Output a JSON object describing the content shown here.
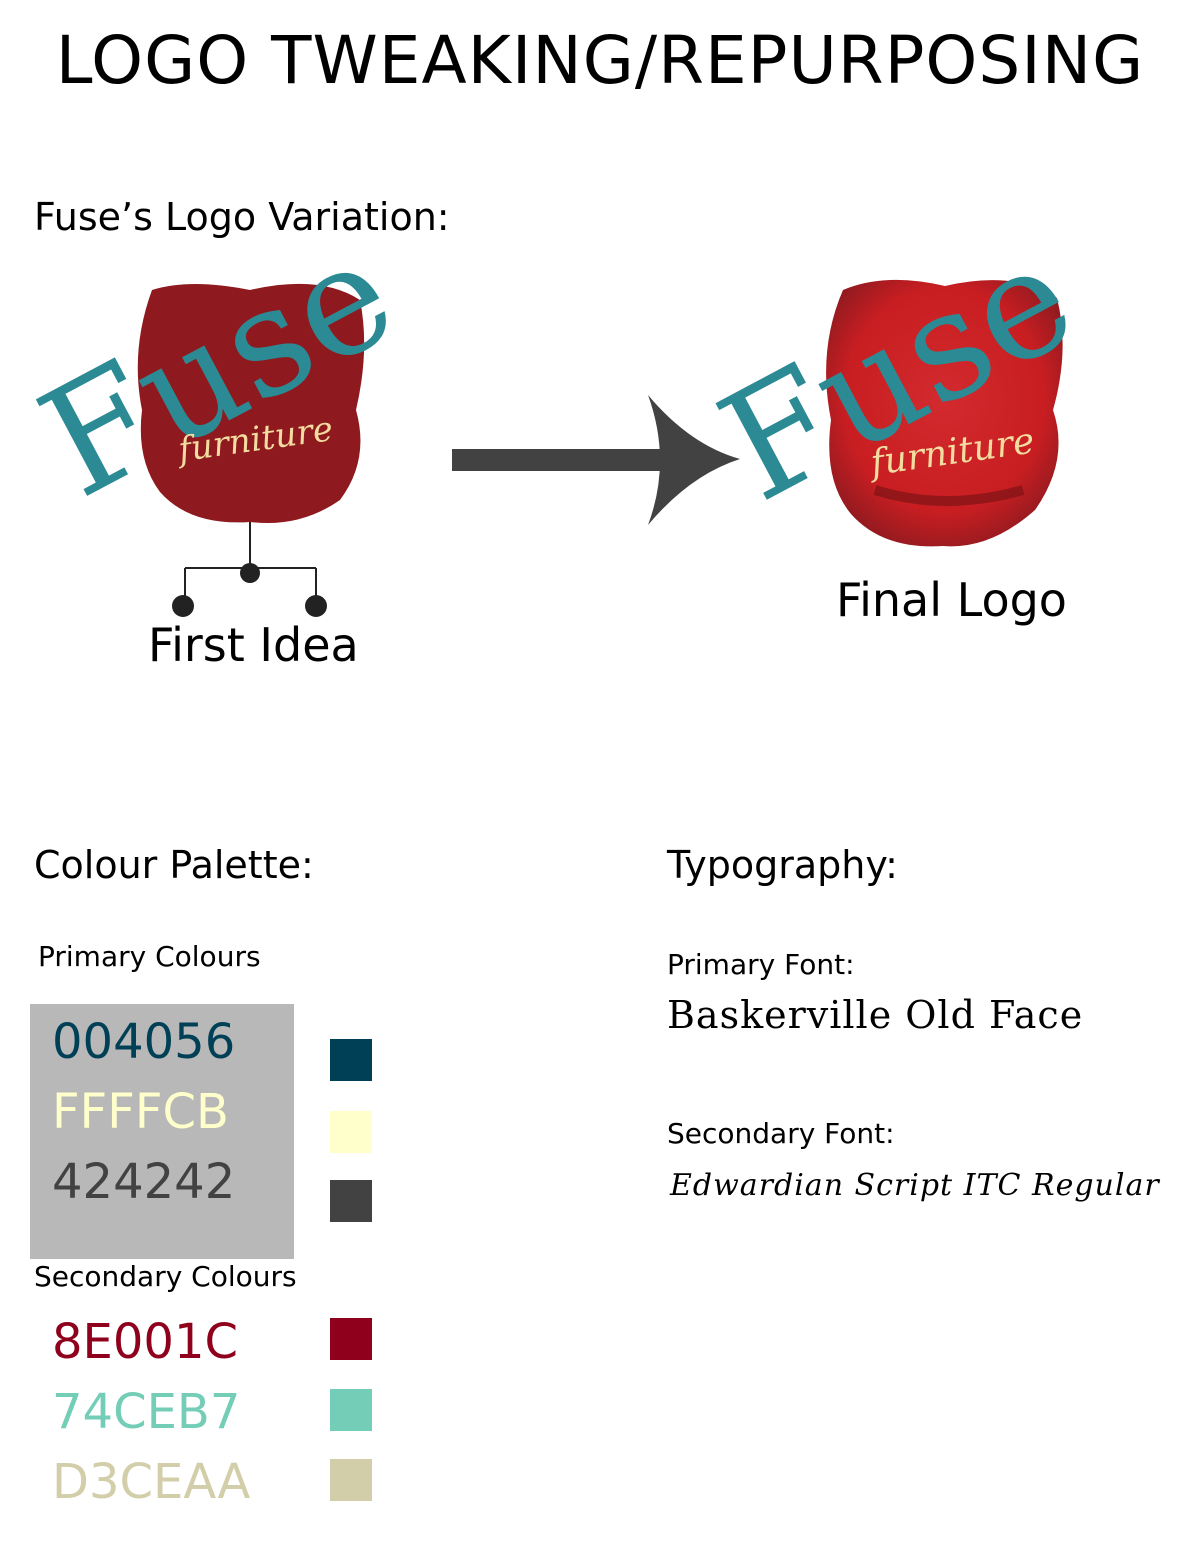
{
  "page": {
    "title": "LOGO TWEAKING/REPURPOSING"
  },
  "logo_section": {
    "heading": "Fuse’s Logo Variation:",
    "first": {
      "brand_word": "Fuse",
      "script_word": "furniture",
      "caption": "First Idea"
    },
    "final": {
      "brand_word": "Fuse",
      "script_word": "furniture",
      "caption": "Final Logo"
    },
    "arrow_icon": "arrow-right-icon"
  },
  "palette": {
    "heading": "Colour Palette:",
    "primary_label": "Primary Colours",
    "primary": [
      {
        "code": "004056",
        "color": "#004056"
      },
      {
        "code": "FFFFCB",
        "color": "#FFFFCB"
      },
      {
        "code": "424242",
        "color": "#424242"
      }
    ],
    "secondary_label": "Secondary Colours",
    "secondary": [
      {
        "code": "8E001C",
        "color": "#8E001C"
      },
      {
        "code": "74CEB7",
        "color": "#74CEB7"
      },
      {
        "code": "D3CEAA",
        "color": "#D3CEAA"
      }
    ]
  },
  "typography": {
    "heading": "Typography:",
    "primary_label": "Primary Font:",
    "primary_sample": "Baskerville Old Face",
    "secondary_label": "Secondary Font:",
    "secondary_sample": "Edwardian Script ITC Regular"
  },
  "colors": {
    "logo_teal": "#2b8a94",
    "chair_red_dark": "#8e1a1f",
    "chair_red_bright": "#c81e22",
    "script_gold": "#f3dca0",
    "arrow": "#424242",
    "primary_box_bg": "#b8b8b8"
  }
}
